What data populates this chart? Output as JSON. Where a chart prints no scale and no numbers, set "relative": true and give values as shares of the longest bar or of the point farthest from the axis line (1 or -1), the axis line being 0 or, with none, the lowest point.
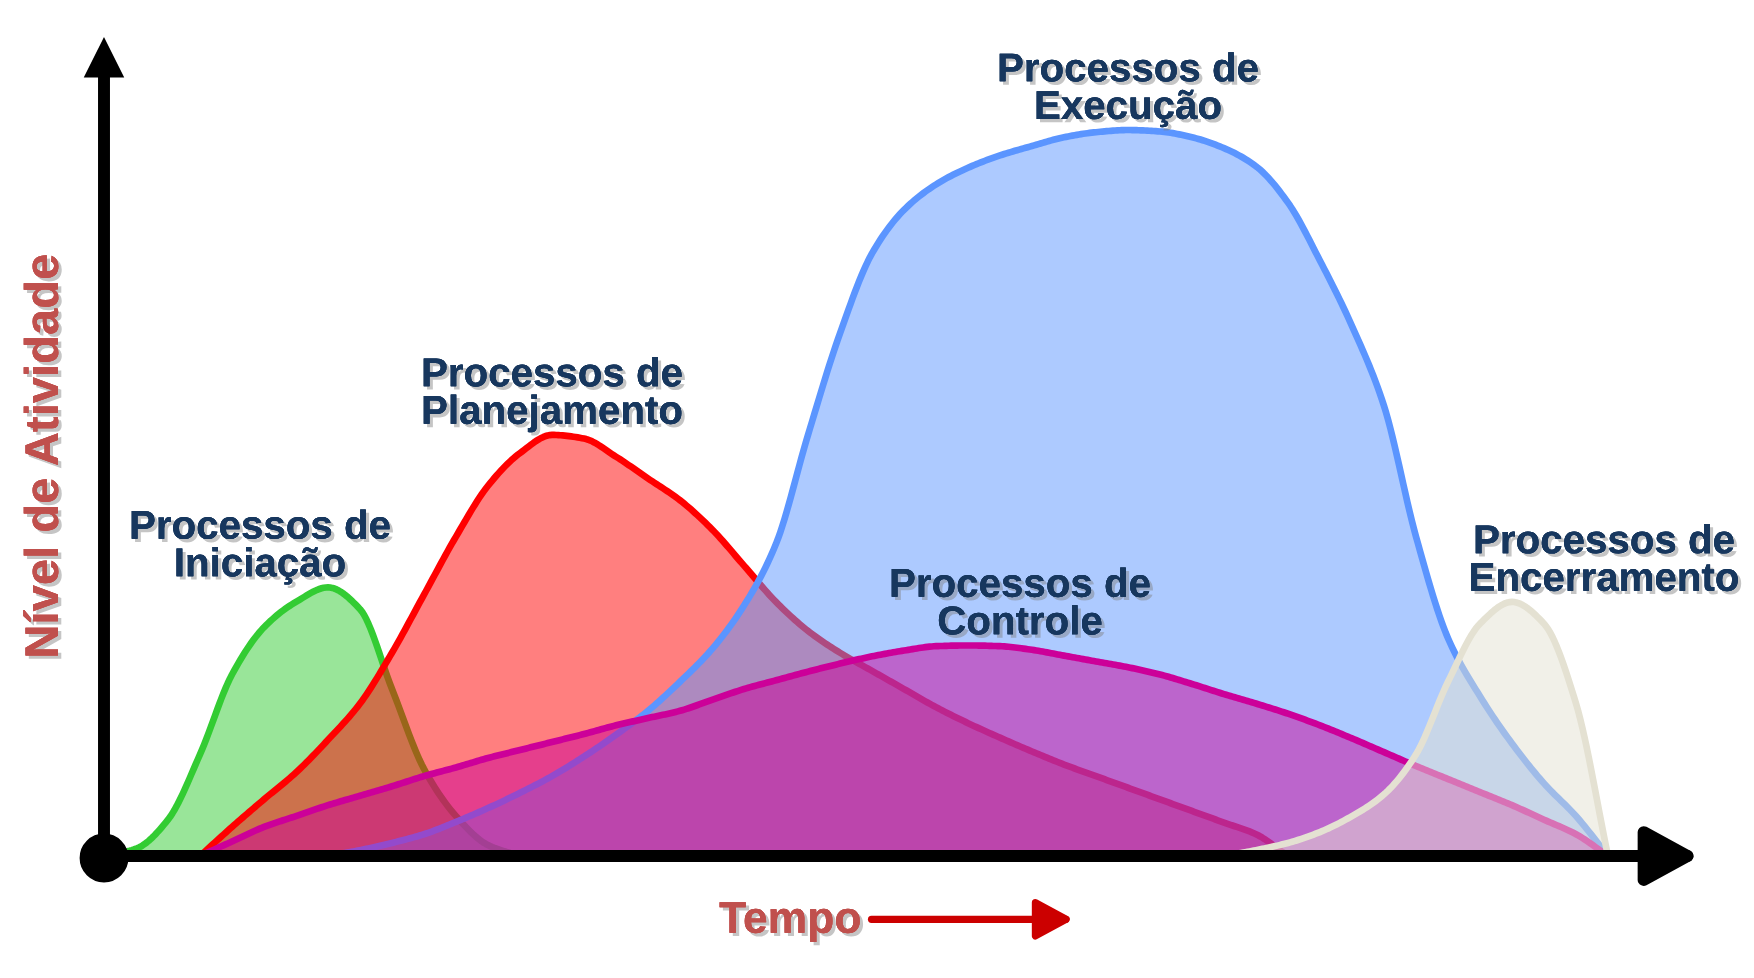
{
  "chart_data": {
    "type": "area",
    "relative": true,
    "xlabel": "Tempo",
    "ylabel": "Nível de Atividade",
    "categories": [
      null,
      null,
      null,
      null,
      null,
      null,
      null,
      null,
      null,
      null,
      null,
      null,
      null,
      null,
      null,
      null,
      null,
      null,
      null,
      null,
      null,
      null,
      null,
      null,
      null,
      null,
      null,
      null,
      null,
      null,
      null,
      null,
      null,
      null,
      null,
      null,
      null,
      null,
      null,
      null,
      null,
      null,
      null,
      null,
      null,
      null,
      null,
      null
    ],
    "series": [
      {
        "name": "Processos de\nIniciação",
        "color": "#33cc33",
        "values": [
          0,
          0.01,
          0.05,
          0.14,
          0.25,
          0.315,
          0.35,
          0.37,
          0.34,
          0.23,
          0.12,
          0.055,
          0.015,
          0,
          null,
          null,
          null,
          null,
          null,
          null,
          null,
          null,
          null,
          null,
          null,
          null,
          null,
          null,
          null,
          null,
          null,
          null,
          null,
          null,
          null,
          null,
          null,
          null,
          null,
          null,
          null,
          null,
          null,
          null,
          null,
          null,
          null,
          null
        ]
      },
      {
        "name": "Processos de\nPlanejamento",
        "color": "#ff0000",
        "values": [
          null,
          null,
          null,
          0,
          0.04,
          0.078,
          0.115,
          0.16,
          0.21,
          0.28,
          0.36,
          0.44,
          0.51,
          0.555,
          0.58,
          0.575,
          0.55,
          0.52,
          0.49,
          0.45,
          0.4,
          0.35,
          0.31,
          0.28,
          0.255,
          0.23,
          0.205,
          0.183,
          0.163,
          0.144,
          0.126,
          0.11,
          0.094,
          0.078,
          0.062,
          0.046,
          0.03,
          0,
          null,
          null,
          null,
          null,
          null,
          null,
          null,
          null,
          null,
          null
        ]
      },
      {
        "name": "Processos de\nExecução",
        "color": "#5b95ff",
        "values": [
          null,
          null,
          null,
          null,
          null,
          null,
          null,
          0,
          0.008,
          0.018,
          0.03,
          0.047,
          0.066,
          0.087,
          0.11,
          0.137,
          0.167,
          0.2,
          0.24,
          0.285,
          0.345,
          0.43,
          0.58,
          0.72,
          0.83,
          0.89,
          0.925,
          0.948,
          0.965,
          0.978,
          0.99,
          0.997,
          1,
          0.998,
          0.99,
          0.975,
          0.95,
          0.9,
          0.82,
          0.73,
          0.62,
          0.44,
          0.3,
          0.22,
          0.155,
          0.1,
          0.055,
          0
        ]
      },
      {
        "name": "Processos de\nControle",
        "color": "#cc0099",
        "values": [
          null,
          null,
          null,
          0,
          0.02,
          0.04,
          0.055,
          0.07,
          0.083,
          0.096,
          0.11,
          0.122,
          0.135,
          0.146,
          0.157,
          0.168,
          0.18,
          0.19,
          0.2,
          0.215,
          0.23,
          0.242,
          0.254,
          0.265,
          0.275,
          0.283,
          0.289,
          0.29,
          0.289,
          0.284,
          0.276,
          0.268,
          0.26,
          0.25,
          0.237,
          0.223,
          0.21,
          0.196,
          0.18,
          0.162,
          0.143,
          0.124,
          0.106,
          0.088,
          0.07,
          0.05,
          0.03,
          0
        ]
      },
      {
        "name": "Processos de\nEncerramento",
        "color": "#e4e1d2",
        "values": [
          null,
          null,
          null,
          null,
          null,
          null,
          null,
          null,
          null,
          null,
          null,
          null,
          null,
          null,
          null,
          null,
          null,
          null,
          null,
          null,
          null,
          null,
          null,
          null,
          null,
          null,
          null,
          null,
          null,
          null,
          null,
          null,
          null,
          null,
          null,
          0,
          0.008,
          0.018,
          0.033,
          0.055,
          0.085,
          0.14,
          0.24,
          0.32,
          0.35,
          0.32,
          0.21,
          0
        ]
      }
    ]
  }
}
